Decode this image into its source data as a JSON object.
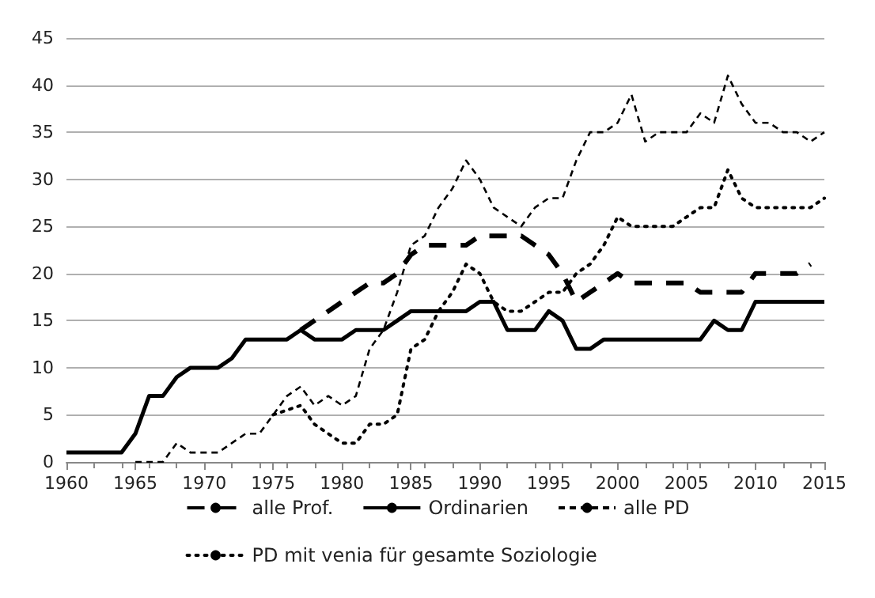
{
  "chart_data": {
    "type": "line",
    "x": [
      1960,
      1961,
      1962,
      1963,
      1964,
      1965,
      1966,
      1967,
      1968,
      1969,
      1970,
      1971,
      1972,
      1973,
      1974,
      1975,
      1976,
      1977,
      1978,
      1979,
      1980,
      1981,
      1982,
      1983,
      1984,
      1985,
      1986,
      1987,
      1988,
      1989,
      1990,
      1991,
      1992,
      1993,
      1994,
      1995,
      1996,
      1997,
      1998,
      1999,
      2000,
      2001,
      2002,
      2003,
      2004,
      2005,
      2006,
      2007,
      2008,
      2009,
      2010,
      2011,
      2012,
      2013,
      2014,
      2015
    ],
    "series": [
      {
        "name": "alle Prof.",
        "color": "#000000",
        "line_style": "dashed",
        "values": [
          null,
          null,
          null,
          null,
          null,
          null,
          null,
          null,
          null,
          null,
          null,
          null,
          null,
          null,
          null,
          null,
          null,
          14,
          15,
          16,
          17,
          18,
          19,
          19,
          20,
          22,
          23,
          23,
          23,
          23,
          24,
          24,
          24,
          24,
          23,
          22,
          20,
          17,
          18,
          19,
          20,
          19,
          19,
          19,
          19,
          19,
          18,
          18,
          18,
          18,
          20,
          20,
          20,
          20,
          21,
          null
        ]
      },
      {
        "name": "Ordinarien",
        "color": "#000000",
        "line_style": "solid",
        "values": [
          1,
          1,
          1,
          1,
          1,
          3,
          7,
          7,
          9,
          10,
          10,
          10,
          11,
          13,
          13,
          13,
          13,
          14,
          13,
          13,
          13,
          14,
          14,
          14,
          15,
          16,
          16,
          16,
          16,
          16,
          17,
          17,
          14,
          14,
          14,
          16,
          15,
          12,
          12,
          13,
          13,
          13,
          13,
          13,
          13,
          13,
          13,
          15,
          14,
          14,
          17,
          17,
          17,
          17,
          17,
          17
        ]
      },
      {
        "name": "alle PD",
        "color": "#000000",
        "line_style": "dashed",
        "values": [
          null,
          null,
          null,
          null,
          null,
          0,
          0,
          0,
          2,
          1,
          1,
          1,
          2,
          3,
          3,
          5,
          7,
          8,
          6,
          7,
          6,
          7,
          12,
          14,
          18,
          23,
          24,
          27,
          29,
          32,
          30,
          27,
          26,
          25,
          27,
          28,
          28,
          32,
          35,
          35,
          36,
          39,
          34,
          35,
          35,
          35,
          37,
          36,
          41,
          38,
          36,
          36,
          35,
          35,
          34,
          35
        ]
      },
      {
        "name": "PD mit venia für gesamte Soziologie",
        "color": "#000000",
        "line_style": "dotted",
        "values": [
          null,
          null,
          null,
          null,
          null,
          null,
          null,
          null,
          null,
          null,
          null,
          null,
          null,
          null,
          null,
          5,
          5.5,
          6,
          4,
          3,
          2,
          2,
          4,
          4,
          5,
          12,
          13,
          16,
          18,
          21,
          20,
          17,
          16,
          16,
          17,
          18,
          18,
          20,
          21,
          23,
          26,
          25,
          25,
          25,
          25,
          26,
          27,
          27,
          31,
          28,
          27,
          27,
          27,
          27,
          27,
          28
        ]
      }
    ],
    "xlim": [
      1960,
      2015
    ],
    "xticks": [
      1960,
      1965,
      1970,
      1975,
      1980,
      1985,
      1990,
      1995,
      2000,
      2005,
      2010,
      2015
    ],
    "ylim": [
      0,
      45
    ],
    "yticks": [
      0,
      5,
      10,
      15,
      20,
      25,
      30,
      35,
      40,
      45
    ],
    "grid": "y",
    "legend": "bottom",
    "marker": "none"
  }
}
